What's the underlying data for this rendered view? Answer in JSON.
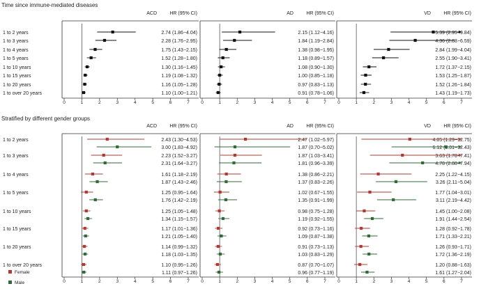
{
  "chart_data": {
    "type": "forest",
    "axis_ticks": [
      0,
      1,
      2,
      3,
      4,
      5,
      6,
      7
    ],
    "axis_range": [
      0,
      7
    ],
    "reference_line": 1,
    "colors": {
      "overall": "#111111",
      "female": "#b5382f",
      "male": "#2f6b35"
    },
    "legend": [
      {
        "key": "female",
        "label": "Female"
      },
      {
        "key": "male",
        "label": "Male"
      }
    ],
    "col_headers": [
      {
        "outcome": "ACD",
        "stat": "HR (95% CI)"
      },
      {
        "outcome": "AD",
        "stat": "HR (95% CI)"
      },
      {
        "outcome": "VD",
        "stat": "HR (95% CI)"
      }
    ],
    "categories": [
      "1 to 2 years",
      "1 to 3 years",
      "1 to 4 years",
      "1 to 5 years",
      "1 to 10 years",
      "1 to 15 years",
      "1 to 20 years",
      "1 to over 20 years"
    ],
    "sections": [
      {
        "title": "Time since immune-mediated diseases",
        "stratified": false,
        "panels": [
          {
            "points": [
              {
                "hr": 2.74,
                "lo": 1.86,
                "hi": 4.04,
                "label": "2.74 (1.86−4.04)"
              },
              {
                "hr": 2.28,
                "lo": 1.76,
                "hi": 2.95,
                "label": "2.28 (1.76−2.95)"
              },
              {
                "hr": 1.75,
                "lo": 1.43,
                "hi": 2.15,
                "label": "1.75 (1.43−2.15)"
              },
              {
                "hr": 1.52,
                "lo": 1.28,
                "hi": 1.8,
                "label": "1.52 (1.28−1.80)"
              },
              {
                "hr": 1.3,
                "lo": 1.16,
                "hi": 1.45,
                "label": "1.30 (1.16−1.45)"
              },
              {
                "hr": 1.19,
                "lo": 1.08,
                "hi": 1.32,
                "label": "1.19 (1.08−1.32)"
              },
              {
                "hr": 1.16,
                "lo": 1.05,
                "hi": 1.28,
                "label": "1.16 (1.05−1.28)"
              },
              {
                "hr": 1.1,
                "lo": 1.0,
                "hi": 1.21,
                "label": "1.10 (1.00−1.21)"
              }
            ]
          },
          {
            "points": [
              {
                "hr": 2.15,
                "lo": 1.12,
                "hi": 4.16,
                "label": "2.15 (1.12−4.16)"
              },
              {
                "hr": 1.84,
                "lo": 1.19,
                "hi": 2.84,
                "label": "1.84 (1.19−2.84)"
              },
              {
                "hr": 1.38,
                "lo": 0.98,
                "hi": 1.95,
                "label": "1.38 (0.98−1.95)"
              },
              {
                "hr": 1.18,
                "lo": 0.89,
                "hi": 1.57,
                "label": "1.18 (0.89−1.57)"
              },
              {
                "hr": 1.08,
                "lo": 0.9,
                "hi": 1.3,
                "label": "1.08 (0.90−1.30)"
              },
              {
                "hr": 1.0,
                "lo": 0.85,
                "hi": 1.18,
                "label": "1.00 (0.85−1.18)"
              },
              {
                "hr": 0.97,
                "lo": 0.83,
                "hi": 1.13,
                "label": "0.97 (0.83−1.13)"
              },
              {
                "hr": 0.91,
                "lo": 0.78,
                "hi": 1.06,
                "label": "0.91 (0.78−1.06)"
              }
            ]
          },
          {
            "points": [
              {
                "hr": 5.39,
                "lo": 2.95,
                "hi": 9.84,
                "label": "5.39 (2.95−9.84)"
              },
              {
                "hr": 4.36,
                "lo": 2.88,
                "hi": 6.59,
                "label": "4.36 (2.88−6.59)"
              },
              {
                "hr": 2.84,
                "lo": 1.99,
                "hi": 4.04,
                "label": "2.84 (1.99−4.04)"
              },
              {
                "hr": 2.55,
                "lo": 1.9,
                "hi": 3.41,
                "label": "2.55 (1.90−3.41)"
              },
              {
                "hr": 1.72,
                "lo": 1.37,
                "hi": 2.15,
                "label": "1.72 (1.37−2.15)"
              },
              {
                "hr": 1.53,
                "lo": 1.25,
                "hi": 1.87,
                "label": "1.53 (1.25−1.87)"
              },
              {
                "hr": 1.52,
                "lo": 1.26,
                "hi": 1.84,
                "label": "1.52 (1.26−1.84)"
              },
              {
                "hr": 1.43,
                "lo": 1.19,
                "hi": 1.73,
                "label": "1.43 (1.19−1.73)"
              }
            ]
          }
        ]
      },
      {
        "title": "Stratified by different gender groups",
        "stratified": true,
        "panels": [
          {
            "female": [
              {
                "hr": 2.43,
                "lo": 1.3,
                "hi": 4.53,
                "label": "2.43 (1.30−4.53)"
              },
              {
                "hr": 2.23,
                "lo": 1.52,
                "hi": 3.27,
                "label": "2.23 (1.52−3.27)"
              },
              {
                "hr": 1.61,
                "lo": 1.18,
                "hi": 2.19,
                "label": "1.61 (1.18−2.19)"
              },
              {
                "hr": 1.25,
                "lo": 0.95,
                "hi": 1.64,
                "label": "1.25 (0.95−1.64)"
              },
              {
                "hr": 1.25,
                "lo": 1.05,
                "hi": 1.48,
                "label": "1.25 (1.05−1.48)"
              },
              {
                "hr": 1.17,
                "lo": 1.01,
                "hi": 1.36,
                "label": "1.17 (1.01−1.36)"
              },
              {
                "hr": 1.14,
                "lo": 0.99,
                "hi": 1.32,
                "label": "1.14 (0.99−1.32)"
              },
              {
                "hr": 1.1,
                "lo": 0.95,
                "hi": 1.26,
                "label": "1.10 (0.95−1.26)"
              }
            ],
            "male": [
              {
                "hr": 3.0,
                "lo": 1.83,
                "hi": 4.92,
                "label": "3.00 (1.83−4.92)"
              },
              {
                "hr": 2.31,
                "lo": 1.64,
                "hi": 3.27,
                "label": "2.31 (1.64−3.27)"
              },
              {
                "hr": 1.87,
                "lo": 1.43,
                "hi": 2.46,
                "label": "1.87 (1.43−2.46)"
              },
              {
                "hr": 1.76,
                "lo": 1.42,
                "hi": 2.19,
                "label": "1.76 (1.42−2.19)"
              },
              {
                "hr": 1.34,
                "lo": 1.15,
                "hi": 1.57,
                "label": "1.34 (1.15−1.57)"
              },
              {
                "hr": 1.21,
                "lo": 1.05,
                "hi": 1.4,
                "label": "1.21 (1.05−1.40)"
              },
              {
                "hr": 1.18,
                "lo": 1.03,
                "hi": 1.35,
                "label": "1.18 (1.03−1.35)"
              },
              {
                "hr": 1.11,
                "lo": 0.97,
                "hi": 1.26,
                "label": "1.11 (0.97−1.26)"
              }
            ]
          },
          {
            "female": [
              {
                "hr": 2.47,
                "lo": 1.02,
                "hi": 5.97,
                "label": "2.47 (1.02−5.97)"
              },
              {
                "hr": 1.87,
                "lo": 1.03,
                "hi": 3.41,
                "label": "1.87 (1.03−3.41)"
              },
              {
                "hr": 1.38,
                "lo": 0.86,
                "hi": 2.21,
                "label": "1.38 (0.86−2.21)"
              },
              {
                "hr": 1.02,
                "lo": 0.67,
                "hi": 1.55,
                "label": "1.02 (0.67−1.55)"
              },
              {
                "hr": 0.98,
                "lo": 0.75,
                "hi": 1.28,
                "label": "0.98 (0.75−1.28)"
              },
              {
                "hr": 0.92,
                "lo": 0.73,
                "hi": 1.16,
                "label": "0.92 (0.73−1.16)"
              },
              {
                "hr": 0.91,
                "lo": 0.73,
                "hi": 1.13,
                "label": "0.91 (0.73−1.13)"
              },
              {
                "hr": 0.87,
                "lo": 0.7,
                "hi": 1.07,
                "label": "0.87 (0.70−1.07)"
              }
            ],
            "male": [
              {
                "hr": 1.87,
                "lo": 0.7,
                "hi": 5.02,
                "label": "1.87 (0.70−5.02)"
              },
              {
                "hr": 1.81,
                "lo": 0.96,
                "hi": 3.39,
                "label": "1.81 (0.96−3.39)"
              },
              {
                "hr": 1.37,
                "lo": 0.83,
                "hi": 2.26,
                "label": "1.37 (0.83−2.26)"
              },
              {
                "hr": 1.35,
                "lo": 0.91,
                "hi": 1.99,
                "label": "1.35 (0.91−1.99)"
              },
              {
                "hr": 1.19,
                "lo": 0.92,
                "hi": 1.55,
                "label": "1.19 (0.92−1.55)"
              },
              {
                "hr": 1.09,
                "lo": 0.87,
                "hi": 1.38,
                "label": "1.09 (0.87−1.38)"
              },
              {
                "hr": 1.03,
                "lo": 0.83,
                "hi": 1.29,
                "label": "1.03 (0.83−1.29)"
              },
              {
                "hr": 0.96,
                "lo": 0.77,
                "hi": 1.19,
                "label": "0.96 (0.77−1.19)"
              }
            ]
          },
          {
            "female": [
              {
                "hr": 4.05,
                "lo": 1.29,
                "hi": 12.75,
                "label": "4.05 (1.29−12.75)"
              },
              {
                "hr": 3.63,
                "lo": 1.78,
                "hi": 7.41,
                "label": "3.63 (1.78−7.41)"
              },
              {
                "hr": 2.25,
                "lo": 1.22,
                "hi": 4.15,
                "label": "2.25 (1.22−4.15)"
              },
              {
                "hr": 1.77,
                "lo": 1.04,
                "hi": 3.01,
                "label": "1.77 (1.04−3.01)"
              },
              {
                "hr": 1.45,
                "lo": 1.0,
                "hi": 2.08,
                "label": "1.45 (1.00−2.08)"
              },
              {
                "hr": 1.28,
                "lo": 0.92,
                "hi": 1.78,
                "label": "1.28 (0.92−1.78)"
              },
              {
                "hr": 1.26,
                "lo": 0.93,
                "hi": 1.71,
                "label": "1.26 (0.93−1.71)"
              },
              {
                "hr": 1.2,
                "lo": 0.88,
                "hi": 1.63,
                "label": "1.20 (0.88−1.63)"
              }
            ],
            "male": [
              {
                "hr": 6.12,
                "lo": 3.01,
                "hi": 12.43,
                "label": "6.12 (3.01−12.43)"
              },
              {
                "hr": 4.78,
                "lo": 2.88,
                "hi": 7.94,
                "label": "4.78 (2.88−7.94)"
              },
              {
                "hr": 3.26,
                "lo": 2.11,
                "hi": 5.04,
                "label": "3.26 (2.11−5.04)"
              },
              {
                "hr": 3.11,
                "lo": 2.19,
                "hi": 4.42,
                "label": "3.11 (2.19−4.42)"
              },
              {
                "hr": 1.91,
                "lo": 1.44,
                "hi": 2.54,
                "label": "1.91 (1.44−2.54)"
              },
              {
                "hr": 1.71,
                "lo": 1.33,
                "hi": 2.21,
                "label": "1.71 (1.33−2.21)"
              },
              {
                "hr": 1.72,
                "lo": 1.36,
                "hi": 2.19,
                "label": "1.72 (1.36−2.19)"
              },
              {
                "hr": 1.61,
                "lo": 1.27,
                "hi": 2.04,
                "label": "1.61 (1.27−2.04)"
              }
            ]
          }
        ]
      }
    ]
  }
}
